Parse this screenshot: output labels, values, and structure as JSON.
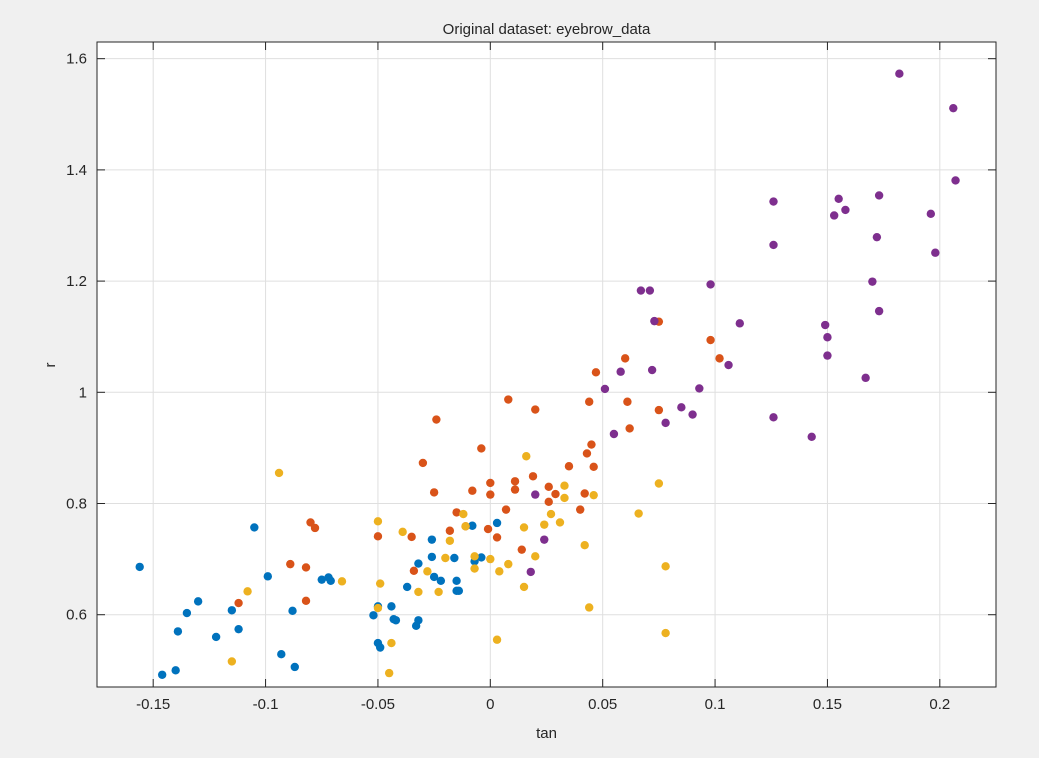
{
  "chart_data": {
    "type": "scatter",
    "title": "Original dataset: eyebrow_data",
    "xlabel": "tan",
    "ylabel": "r",
    "xlim": [
      -0.175,
      0.225
    ],
    "ylim": [
      0.47,
      1.63
    ],
    "grid": true,
    "x_ticks": [
      -0.15,
      -0.1,
      -0.05,
      0,
      0.05,
      0.1,
      0.15,
      0.2
    ],
    "x_tick_labels": [
      "-0.15",
      "-0.1",
      "-0.05",
      "0",
      "0.05",
      "0.1",
      "0.15",
      "0.2"
    ],
    "y_ticks": [
      0.6,
      0.8,
      1.0,
      1.2,
      1.4,
      1.6
    ],
    "y_tick_labels": [
      "0.6",
      "0.8",
      "1",
      "1.2",
      "1.4",
      "1.6"
    ],
    "series": [
      {
        "color": "#0072BD",
        "points": [
          [
            -0.156,
            0.686
          ],
          [
            -0.146,
            0.492
          ],
          [
            -0.14,
            0.5
          ],
          [
            -0.139,
            0.57
          ],
          [
            -0.135,
            0.603
          ],
          [
            -0.13,
            0.624
          ],
          [
            -0.122,
            0.56
          ],
          [
            -0.115,
            0.608
          ],
          [
            -0.112,
            0.574
          ],
          [
            -0.105,
            0.757
          ],
          [
            -0.099,
            0.669
          ],
          [
            -0.093,
            0.529
          ],
          [
            -0.088,
            0.607
          ],
          [
            -0.087,
            0.506
          ],
          [
            -0.075,
            0.663
          ],
          [
            -0.072,
            0.667
          ],
          [
            -0.071,
            0.661
          ],
          [
            -0.052,
            0.599
          ],
          [
            -0.05,
            0.615
          ],
          [
            -0.05,
            0.549
          ],
          [
            -0.049,
            0.541
          ],
          [
            -0.044,
            0.615
          ],
          [
            -0.043,
            0.592
          ],
          [
            -0.042,
            0.59
          ],
          [
            -0.037,
            0.65
          ],
          [
            -0.033,
            0.58
          ],
          [
            -0.032,
            0.59
          ],
          [
            -0.032,
            0.692
          ],
          [
            -0.026,
            0.704
          ],
          [
            -0.026,
            0.735
          ],
          [
            -0.025,
            0.668
          ],
          [
            -0.022,
            0.661
          ],
          [
            -0.016,
            0.702
          ],
          [
            -0.015,
            0.661
          ],
          [
            -0.015,
            0.643
          ],
          [
            -0.014,
            0.643
          ],
          [
            -0.008,
            0.76
          ],
          [
            -0.007,
            0.696
          ],
          [
            -0.004,
            0.703
          ],
          [
            0.003,
            0.765
          ]
        ]
      },
      {
        "color": "#D95319",
        "points": [
          [
            -0.112,
            0.621
          ],
          [
            -0.089,
            0.691
          ],
          [
            -0.082,
            0.625
          ],
          [
            -0.082,
            0.685
          ],
          [
            -0.08,
            0.766
          ],
          [
            -0.078,
            0.756
          ],
          [
            -0.05,
            0.741
          ],
          [
            -0.035,
            0.74
          ],
          [
            -0.034,
            0.679
          ],
          [
            -0.03,
            0.873
          ],
          [
            -0.025,
            0.82
          ],
          [
            -0.024,
            0.951
          ],
          [
            -0.018,
            0.751
          ],
          [
            -0.015,
            0.784
          ],
          [
            -0.011,
            0.759
          ],
          [
            -0.008,
            0.823
          ],
          [
            -0.004,
            0.899
          ],
          [
            -0.001,
            0.754
          ],
          [
            0.0,
            0.837
          ],
          [
            0.0,
            0.816
          ],
          [
            0.003,
            0.739
          ],
          [
            0.007,
            0.789
          ],
          [
            0.008,
            0.987
          ],
          [
            0.011,
            0.84
          ],
          [
            0.011,
            0.825
          ],
          [
            0.014,
            0.717
          ],
          [
            0.019,
            0.849
          ],
          [
            0.02,
            0.969
          ],
          [
            0.026,
            0.83
          ],
          [
            0.026,
            0.803
          ],
          [
            0.029,
            0.817
          ],
          [
            0.035,
            0.867
          ],
          [
            0.04,
            0.789
          ],
          [
            0.042,
            0.818
          ],
          [
            0.043,
            0.89
          ],
          [
            0.044,
            0.983
          ],
          [
            0.045,
            0.906
          ],
          [
            0.046,
            0.866
          ],
          [
            0.047,
            1.036
          ],
          [
            0.06,
            1.061
          ],
          [
            0.061,
            0.983
          ],
          [
            0.062,
            0.935
          ],
          [
            0.075,
            0.968
          ],
          [
            0.075,
            1.127
          ],
          [
            0.098,
            1.094
          ],
          [
            0.102,
            1.061
          ]
        ]
      },
      {
        "color": "#EDB120",
        "points": [
          [
            -0.115,
            0.516
          ],
          [
            -0.108,
            0.642
          ],
          [
            -0.094,
            0.855
          ],
          [
            -0.066,
            0.66
          ],
          [
            -0.05,
            0.768
          ],
          [
            -0.05,
            0.612
          ],
          [
            -0.049,
            0.656
          ],
          [
            -0.045,
            0.495
          ],
          [
            -0.044,
            0.549
          ],
          [
            -0.039,
            0.749
          ],
          [
            -0.032,
            0.641
          ],
          [
            -0.028,
            0.678
          ],
          [
            -0.023,
            0.641
          ],
          [
            -0.02,
            0.702
          ],
          [
            -0.018,
            0.733
          ],
          [
            -0.012,
            0.781
          ],
          [
            -0.011,
            0.759
          ],
          [
            -0.007,
            0.705
          ],
          [
            -0.007,
            0.683
          ],
          [
            0.0,
            0.7
          ],
          [
            0.003,
            0.555
          ],
          [
            0.004,
            0.678
          ],
          [
            0.008,
            0.691
          ],
          [
            0.015,
            0.65
          ],
          [
            0.015,
            0.757
          ],
          [
            0.016,
            0.885
          ],
          [
            0.02,
            0.705
          ],
          [
            0.024,
            0.762
          ],
          [
            0.027,
            0.781
          ],
          [
            0.031,
            0.766
          ],
          [
            0.033,
            0.832
          ],
          [
            0.033,
            0.81
          ],
          [
            0.042,
            0.725
          ],
          [
            0.044,
            0.613
          ],
          [
            0.046,
            0.815
          ],
          [
            0.066,
            0.782
          ],
          [
            0.075,
            0.836
          ],
          [
            0.078,
            0.567
          ],
          [
            0.078,
            0.687
          ]
        ]
      },
      {
        "color": "#7E2F8E",
        "points": [
          [
            0.018,
            0.677
          ],
          [
            0.02,
            0.816
          ],
          [
            0.024,
            0.735
          ],
          [
            0.051,
            1.006
          ],
          [
            0.055,
            0.925
          ],
          [
            0.058,
            1.037
          ],
          [
            0.067,
            1.183
          ],
          [
            0.071,
            1.183
          ],
          [
            0.072,
            1.04
          ],
          [
            0.073,
            1.128
          ],
          [
            0.078,
            0.945
          ],
          [
            0.085,
            0.973
          ],
          [
            0.09,
            0.96
          ],
          [
            0.093,
            1.007
          ],
          [
            0.098,
            1.194
          ],
          [
            0.106,
            1.049
          ],
          [
            0.111,
            1.124
          ],
          [
            0.126,
            1.343
          ],
          [
            0.126,
            1.265
          ],
          [
            0.126,
            0.955
          ],
          [
            0.143,
            0.92
          ],
          [
            0.149,
            1.121
          ],
          [
            0.15,
            1.099
          ],
          [
            0.15,
            1.066
          ],
          [
            0.153,
            1.318
          ],
          [
            0.155,
            1.348
          ],
          [
            0.158,
            1.328
          ],
          [
            0.167,
            1.026
          ],
          [
            0.17,
            1.199
          ],
          [
            0.172,
            1.279
          ],
          [
            0.173,
            1.354
          ],
          [
            0.173,
            1.146
          ],
          [
            0.182,
            1.573
          ],
          [
            0.196,
            1.321
          ],
          [
            0.198,
            1.251
          ],
          [
            0.206,
            1.511
          ],
          [
            0.207,
            1.381
          ]
        ]
      }
    ]
  }
}
